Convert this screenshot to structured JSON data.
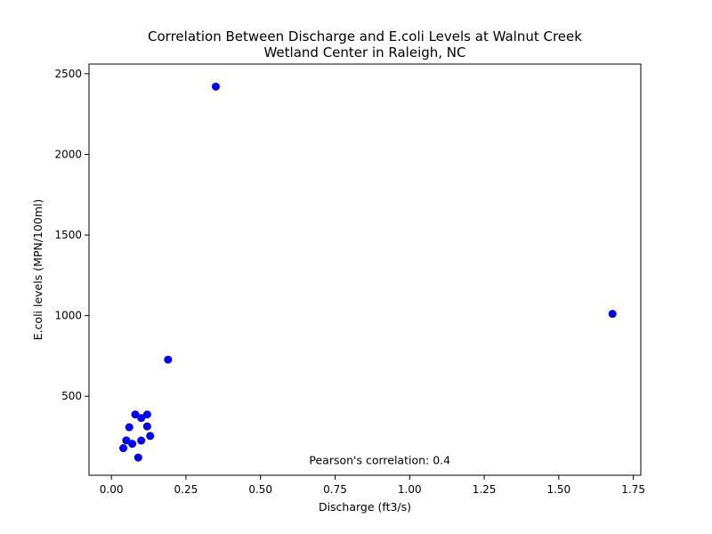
{
  "chart_data": {
    "type": "scatter",
    "title_lines": [
      "Correlation Between Discharge and E.coli Levels at Walnut Creek",
      "Wetland Center in Raleigh, NC"
    ],
    "xlabel": "Discharge (ft3/s)",
    "ylabel": "E.coli levels (MPN/100ml)",
    "xlim": [
      -0.075,
      1.775
    ],
    "ylim": [
      10,
      2560
    ],
    "x_ticks": [
      0.0,
      0.25,
      0.5,
      0.75,
      1.0,
      1.25,
      1.5,
      1.75
    ],
    "x_tick_labels": [
      "0.00",
      "0.25",
      "0.50",
      "0.75",
      "1.00",
      "1.25",
      "1.50",
      "1.75"
    ],
    "y_ticks": [
      500,
      1000,
      1500,
      2000,
      2500
    ],
    "y_tick_labels": [
      "500",
      "1000",
      "1500",
      "2000",
      "2500"
    ],
    "grid": false,
    "point_color": "#0000ff",
    "annotation": "Pearson's correlation: 0.4",
    "annotation_pos": {
      "x": 0.9,
      "y": 100
    },
    "points": [
      {
        "x": 0.35,
        "y": 2420
      },
      {
        "x": 1.68,
        "y": 1011
      },
      {
        "x": 0.19,
        "y": 727
      },
      {
        "x": 0.08,
        "y": 387
      },
      {
        "x": 0.12,
        "y": 387
      },
      {
        "x": 0.1,
        "y": 365
      },
      {
        "x": 0.06,
        "y": 308
      },
      {
        "x": 0.12,
        "y": 313
      },
      {
        "x": 0.13,
        "y": 254
      },
      {
        "x": 0.05,
        "y": 226
      },
      {
        "x": 0.1,
        "y": 225
      },
      {
        "x": 0.07,
        "y": 205
      },
      {
        "x": 0.04,
        "y": 178
      },
      {
        "x": 0.09,
        "y": 120
      }
    ]
  }
}
